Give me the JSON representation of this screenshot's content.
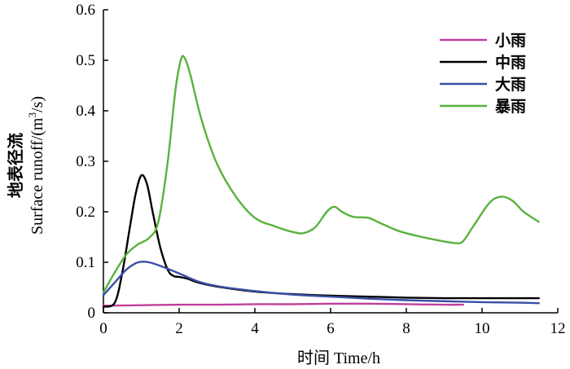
{
  "chart_data": {
    "type": "line",
    "xlabel": "时间 Time/h",
    "ylabel_line1": "地表径流",
    "ylabel_line2_prefix": "Surface runoff/(m",
    "ylabel_line2_sup": "3",
    "ylabel_line2_suffix": "/s)",
    "xlim": [
      0,
      12
    ],
    "ylim": [
      0,
      0.6
    ],
    "xticks": [
      0,
      2,
      4,
      6,
      8,
      10,
      12
    ],
    "yticks": [
      0,
      0.1,
      0.2,
      0.3,
      0.4,
      0.5,
      0.6
    ],
    "xtick_labels": [
      "0",
      "2",
      "4",
      "6",
      "8",
      "10",
      "12"
    ],
    "ytick_labels": [
      "0",
      "0.1",
      "0.2",
      "0.3",
      "0.4",
      "0.5",
      "0.6"
    ],
    "grid": false,
    "legend_position": "top-right",
    "series": [
      {
        "name": "小雨",
        "color": "#c0409a",
        "x": [
          0,
          1,
          2,
          3,
          4,
          5,
          6,
          7,
          8,
          9,
          9.5
        ],
        "y": [
          0.014,
          0.015,
          0.016,
          0.016,
          0.017,
          0.017,
          0.018,
          0.018,
          0.017,
          0.016,
          0.016
        ]
      },
      {
        "name": "中雨",
        "color": "#000000",
        "x": [
          0,
          0.3,
          0.5,
          0.7,
          0.85,
          1.0,
          1.15,
          1.3,
          1.5,
          1.7,
          1.85,
          2.0,
          2.2,
          2.5,
          3,
          4,
          5,
          6,
          7,
          8,
          9,
          10,
          11,
          11.5
        ],
        "y": [
          0.012,
          0.02,
          0.08,
          0.17,
          0.235,
          0.272,
          0.255,
          0.2,
          0.13,
          0.085,
          0.073,
          0.071,
          0.068,
          0.06,
          0.052,
          0.042,
          0.037,
          0.034,
          0.032,
          0.03,
          0.029,
          0.029,
          0.029,
          0.029
        ]
      },
      {
        "name": "大雨",
        "color": "#3a4ea6",
        "x": [
          0,
          0.3,
          0.6,
          0.85,
          1.0,
          1.2,
          1.5,
          2.0,
          2.5,
          3,
          4,
          5,
          6,
          7,
          8,
          9,
          10,
          11,
          11.5
        ],
        "y": [
          0.035,
          0.06,
          0.085,
          0.098,
          0.101,
          0.1,
          0.093,
          0.078,
          0.062,
          0.053,
          0.043,
          0.036,
          0.032,
          0.028,
          0.025,
          0.023,
          0.021,
          0.02,
          0.019
        ]
      },
      {
        "name": "暴雨",
        "color": "#58b23e",
        "x": [
          0,
          0.3,
          0.6,
          0.9,
          1.2,
          1.45,
          1.7,
          1.9,
          2.05,
          2.15,
          2.3,
          2.6,
          3,
          3.5,
          4,
          4.5,
          5,
          5.3,
          5.6,
          5.9,
          6.1,
          6.3,
          6.6,
          7,
          7.3,
          7.8,
          8.3,
          8.8,
          9.3,
          9.5,
          9.8,
          10.2,
          10.5,
          10.8,
          11.1,
          11.5
        ],
        "y": [
          0.04,
          0.08,
          0.115,
          0.135,
          0.148,
          0.18,
          0.3,
          0.44,
          0.502,
          0.504,
          0.47,
          0.38,
          0.295,
          0.23,
          0.188,
          0.172,
          0.16,
          0.158,
          0.17,
          0.2,
          0.21,
          0.2,
          0.19,
          0.188,
          0.178,
          0.162,
          0.152,
          0.144,
          0.138,
          0.142,
          0.175,
          0.218,
          0.23,
          0.222,
          0.2,
          0.18
        ]
      }
    ]
  }
}
